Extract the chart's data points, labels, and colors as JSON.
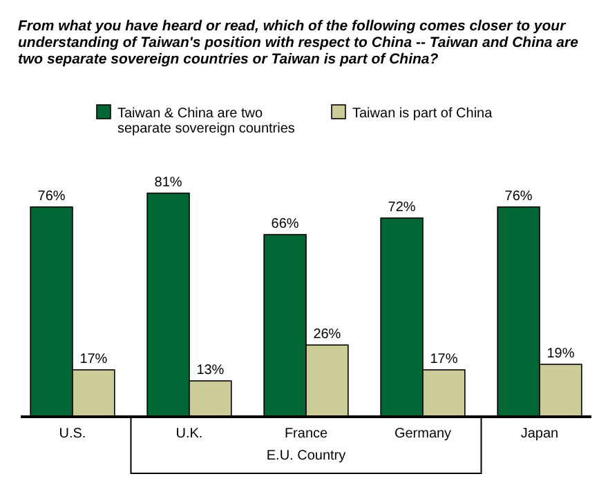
{
  "chart_data": {
    "type": "bar",
    "title": "From what you have heard or read, which of the following comes closer to your understanding of Taiwan's position with respect to China -- Taiwan and China are two separate sovereign countries or Taiwan is part of China?",
    "categories": [
      "U.S.",
      "U.K.",
      "France",
      "Germany",
      "Japan"
    ],
    "series": [
      {
        "name": "Taiwan & China are two separate sovereign countries",
        "color": "#006633",
        "values": [
          76,
          81,
          66,
          72,
          76
        ],
        "value_labels": [
          "76%",
          "81%",
          "66%",
          "72%",
          "76%"
        ]
      },
      {
        "name": "Taiwan is part of China",
        "color": "#cccc99",
        "values": [
          17,
          13,
          26,
          17,
          19
        ],
        "value_labels": [
          "17%",
          "13%",
          "26%",
          "17%",
          "19%"
        ]
      }
    ],
    "legend": "top",
    "grid": false,
    "annotations": [
      "E.U. Country"
    ]
  }
}
